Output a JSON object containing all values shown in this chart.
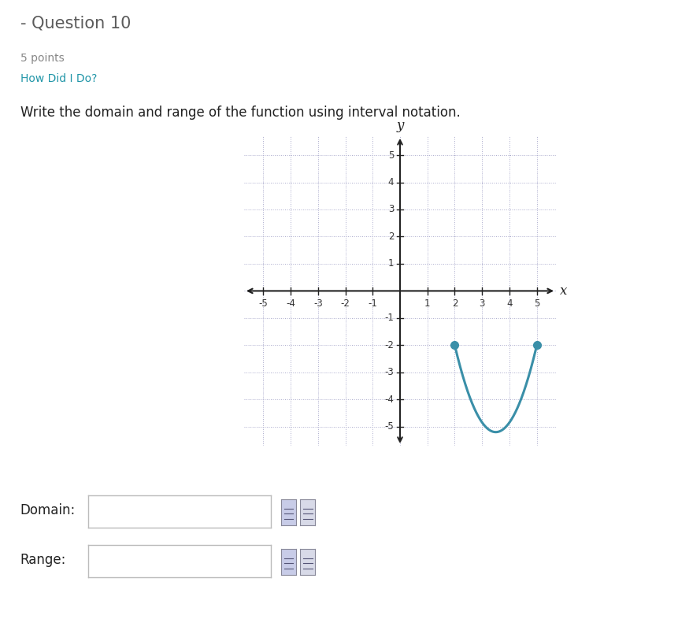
{
  "title_question": "- Question 10",
  "title_color": "#5b5b5b",
  "points_text": "5 points",
  "points_color": "#888888",
  "link_text": "How Did I Do?",
  "link_color": "#2196a8",
  "instruction": "Write the domain and range of the function using interval notation.",
  "instruction_color": "#222222",
  "curve_color": "#3a8fa8",
  "dot_color": "#3a8fa8",
  "curve_x_start": 2,
  "curve_x_end": 5,
  "curve_y_start": -2,
  "curve_y_end": -2,
  "curve_min_x": 3.5,
  "curve_min_y": -5.2,
  "axis_color": "#222222",
  "grid_color": "#aaaacc",
  "tick_label_color": "#333333",
  "xlim": [
    -5.7,
    5.7
  ],
  "ylim": [
    -5.7,
    5.7
  ],
  "xticks": [
    -5,
    -4,
    -3,
    -2,
    -1,
    1,
    2,
    3,
    4,
    5
  ],
  "yticks": [
    -5,
    -4,
    -3,
    -2,
    -1,
    1,
    2,
    3,
    4,
    5
  ],
  "domain_label": "Domain:",
  "range_label": "Range:",
  "bg_color": "#ffffff"
}
